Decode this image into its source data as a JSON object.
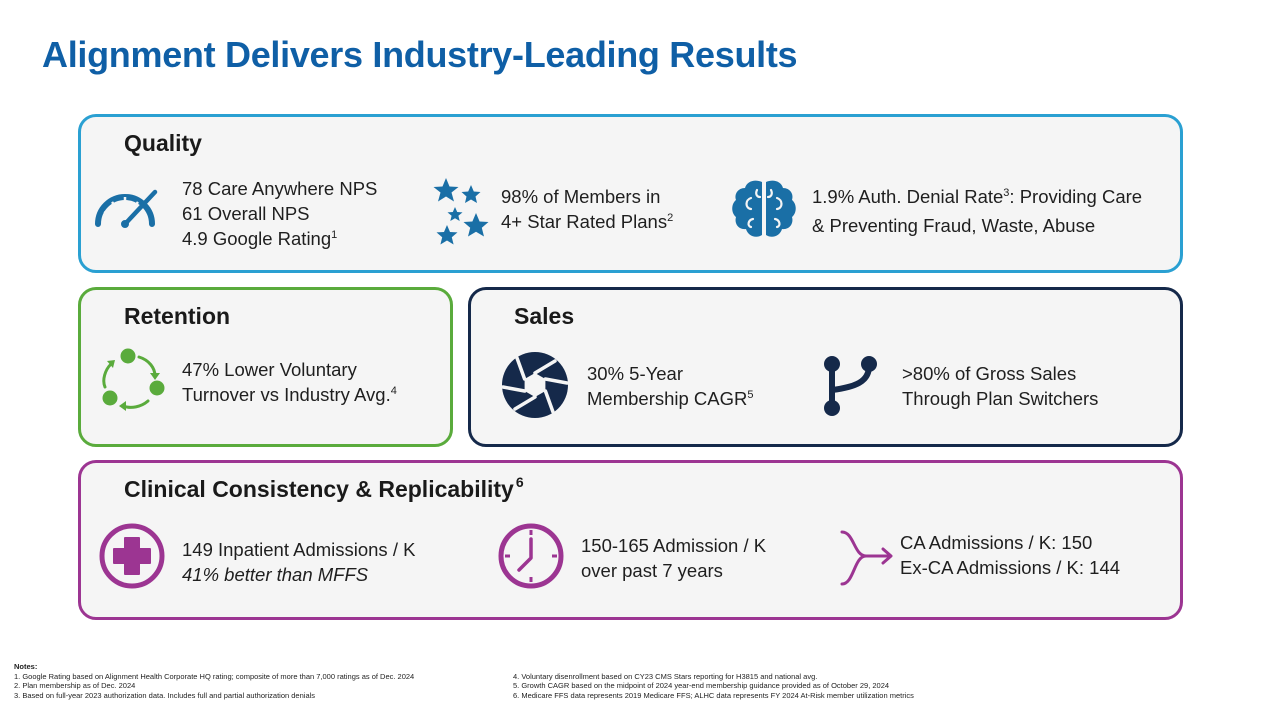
{
  "title": "Alignment Delivers Industry-Leading Results",
  "quality": {
    "heading": "Quality",
    "stat1": {
      "line1": "78 Care Anywhere NPS",
      "line2": "61 Overall NPS",
      "line3": "4.9 Google Rating",
      "sup": "1"
    },
    "stat2": {
      "line1": "98% of Members in",
      "line2": "4+ Star Rated Plans",
      "sup": "2"
    },
    "stat3": {
      "line1a": "1.9% Auth. Denial Rate",
      "sup": "3",
      "line1b": ": Providing Care",
      "line2": "& Preventing Fraud, Waste, Abuse"
    }
  },
  "retention": {
    "heading": "Retention",
    "stat1": {
      "line1": "47% Lower Voluntary",
      "line2": "Turnover vs Industry Avg.",
      "sup": "4"
    }
  },
  "sales": {
    "heading": "Sales",
    "stat1": {
      "line1": "30% 5-Year",
      "line2": "Membership CAGR",
      "sup": "5"
    },
    "stat2": {
      "line1": ">80% of Gross Sales",
      "line2": "Through Plan Switchers"
    }
  },
  "clinical": {
    "heading": "Clinical Consistency & Replicability",
    "sup": "6",
    "stat1": {
      "line1": "149 Inpatient Admissions / K",
      "line2": "41% better than MFFS"
    },
    "stat2": {
      "line1": "150-165 Admission / K",
      "line2": "over past 7 years"
    },
    "stat3": {
      "line1": "CA Admissions / K: 150",
      "line2": "Ex-CA Admissions / K: 144"
    }
  },
  "notes": {
    "heading": "Notes:",
    "left": [
      "1.  Google Rating based on Alignment Health Corporate HQ rating; composite of more than 7,000 ratings as of Dec. 2024",
      "2.  Plan membership as of Dec. 2024",
      "3.  Based on full-year 2023 authorization data. Includes full and partial authorization denials"
    ],
    "right": [
      "4. Voluntary disenrollment based on CY23 CMS Stars reporting for H3815 and national avg.",
      "5. Growth CAGR based on the midpoint of 2024 year-end membership guidance provided as of October 29, 2024",
      "6. Medicare FFS data represents 2019 Medicare FFS; ALHC data represents FY 2024 At-Risk member utilization metrics"
    ]
  },
  "colors": {
    "title": "#0f5fa6",
    "quality": "#2aa0d2",
    "quality_icon": "#1a6fa6",
    "retention": "#5aab3c",
    "sales": "#15294a",
    "clinical": "#9c3592",
    "panel_bg": "#f5f5f5"
  },
  "icons": {
    "quality": [
      "speedometer-icon",
      "stars-icon",
      "brain-icon"
    ],
    "retention": [
      "cycle-icon"
    ],
    "sales": [
      "aperture-icon",
      "branch-icon"
    ],
    "clinical": [
      "medical-cross-icon",
      "clock-icon",
      "merge-arrow-icon"
    ]
  }
}
